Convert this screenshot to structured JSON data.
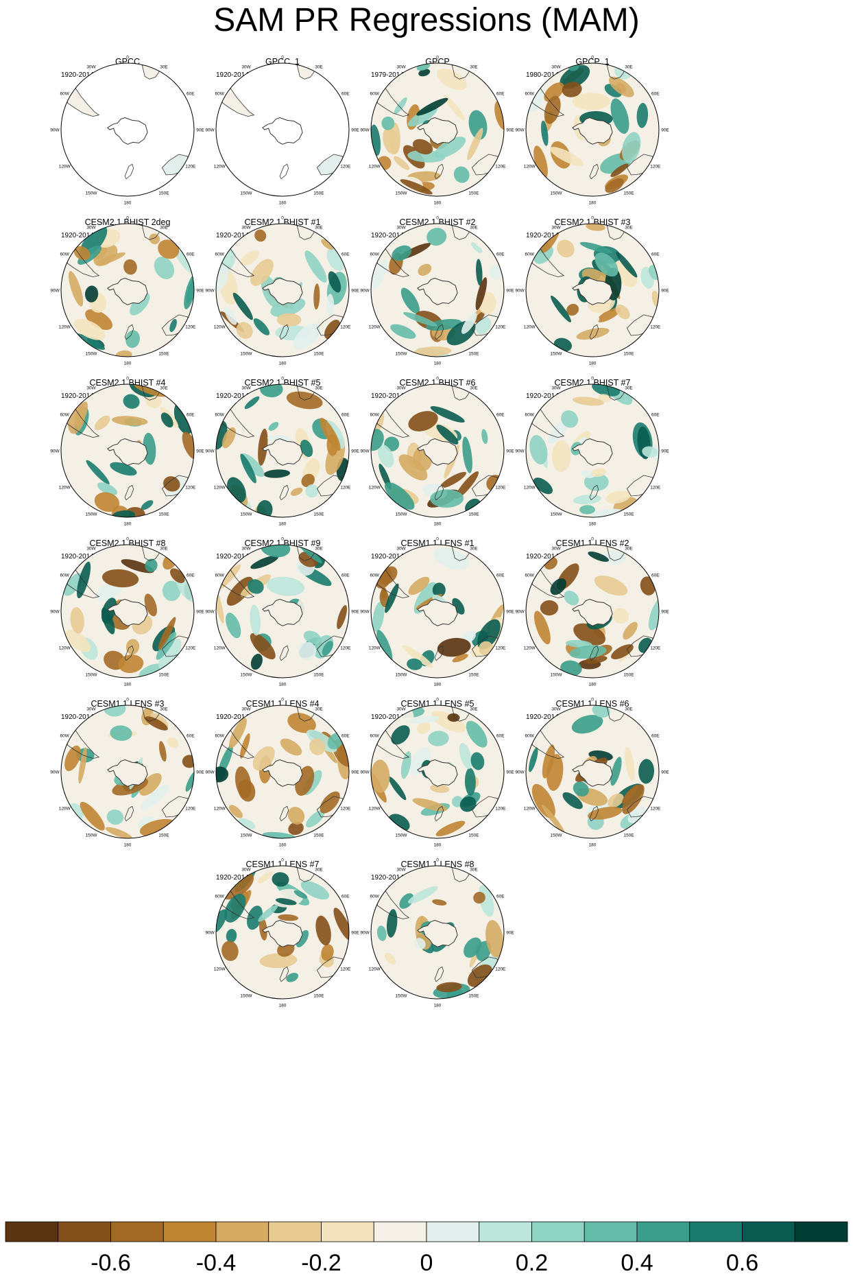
{
  "chart_data": {
    "type": "heatmap",
    "title": "SAM PR Regressions (MAM)",
    "projection": "south polar stereographic",
    "lon_labels": [
      "0",
      "30E",
      "60E",
      "90E",
      "120E",
      "150E",
      "180",
      "150W",
      "120W",
      "90W",
      "60W",
      "30W"
    ],
    "panels": [
      {
        "name": "GPCC",
        "period": "1920-2014",
        "coverage": "land-only"
      },
      {
        "name": "GPCC_1",
        "period": "1920-2014",
        "coverage": "land-only"
      },
      {
        "name": "GPCP",
        "period": "1979-2014",
        "coverage": "global"
      },
      {
        "name": "GPCP_1",
        "period": "1980-2014",
        "coverage": "global"
      },
      {
        "name": "CESM2.1 BHIST 2deg",
        "period": "1920-2014",
        "coverage": "global"
      },
      {
        "name": "CESM2.1 BHIST #1",
        "period": "1920-2014",
        "coverage": "global"
      },
      {
        "name": "CESM2.1 BHIST #2",
        "period": "1920-2014",
        "coverage": "global"
      },
      {
        "name": "CESM2.1 BHIST #3",
        "period": "1920-2014",
        "coverage": "global"
      },
      {
        "name": "CESM2.1 BHIST #4",
        "period": "1920-2014",
        "coverage": "global"
      },
      {
        "name": "CESM2.1 BHIST #5",
        "period": "1920-2014",
        "coverage": "global"
      },
      {
        "name": "CESM2.1 BHIST #6",
        "period": "1920-2014",
        "coverage": "global"
      },
      {
        "name": "CESM2.1 BHIST #7",
        "period": "1920-2014",
        "coverage": "global"
      },
      {
        "name": "CESM2.1 BHIST #8",
        "period": "1920-2014",
        "coverage": "global"
      },
      {
        "name": "CESM2.1 BHIST #9",
        "period": "1920-2014",
        "coverage": "global"
      },
      {
        "name": "CESM1.1 LENS #1",
        "period": "1920-2014",
        "coverage": "global"
      },
      {
        "name": "CESM1.1 LENS #2",
        "period": "1920-2014",
        "coverage": "global"
      },
      {
        "name": "CESM1.1 LENS #3",
        "period": "1920-2014",
        "coverage": "global"
      },
      {
        "name": "CESM1.1 LENS #4",
        "period": "1920-2014",
        "coverage": "global"
      },
      {
        "name": "CESM1.1 LENS #5",
        "period": "1920-2014",
        "coverage": "global"
      },
      {
        "name": "CESM1.1 LENS #6",
        "period": "1920-2014",
        "coverage": "global"
      },
      {
        "name": "CESM1.1 LENS #7",
        "period": "1920-2014",
        "coverage": "global"
      },
      {
        "name": "CESM1.1 LENS #8",
        "period": "1920-2014",
        "coverage": "global"
      }
    ],
    "colorbar": {
      "boundaries": [
        -0.8,
        -0.7,
        -0.6,
        -0.5,
        -0.4,
        -0.3,
        -0.2,
        -0.1,
        0,
        0.1,
        0.2,
        0.3,
        0.4,
        0.5,
        0.6,
        0.7,
        0.8
      ],
      "colors": [
        "#5a3310",
        "#84501a",
        "#a36a26",
        "#c08533",
        "#d5ab63",
        "#e7cb93",
        "#f4e4be",
        "#f4f0e5",
        "#e2efec",
        "#bce6dc",
        "#8fd3c3",
        "#65bca9",
        "#3b9d8b",
        "#1a7c6e",
        "#0a5c50",
        "#023d33"
      ],
      "labels": [
        "-0.6",
        "-0.4",
        "-0.2",
        "0",
        "0.2",
        "0.4",
        "0.6"
      ],
      "label_values": [
        -0.6,
        -0.4,
        -0.2,
        0,
        0.2,
        0.4,
        0.6
      ]
    }
  }
}
